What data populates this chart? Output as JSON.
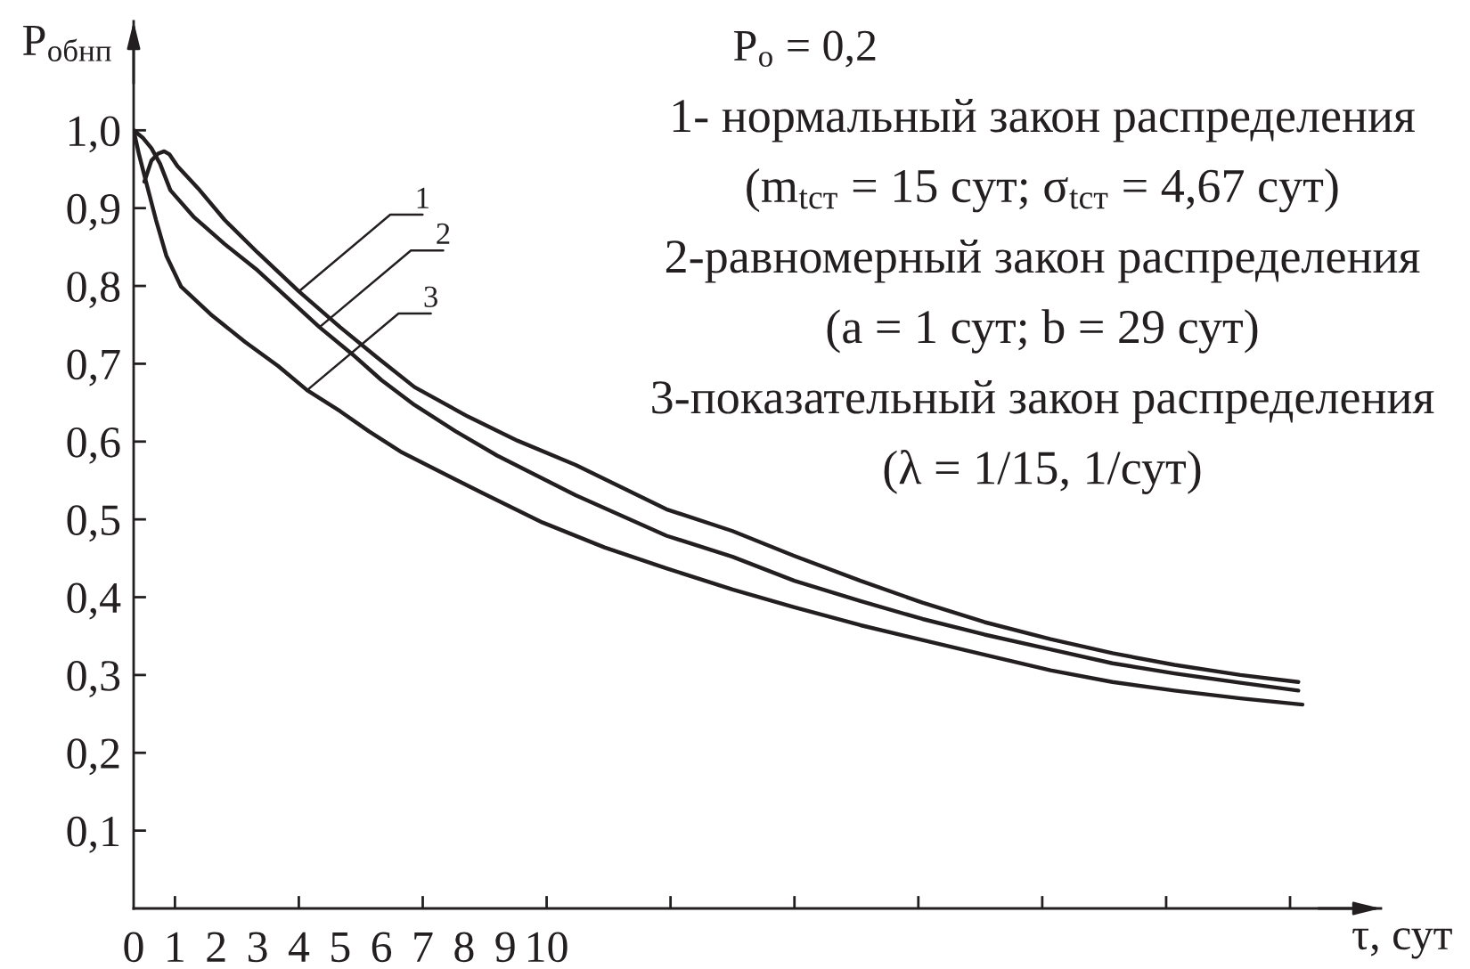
{
  "chart_data": {
    "type": "line",
    "xlabel": "τ, сут",
    "ylabel": "P$_{обнп}$",
    "xlim": [
      0,
      30.2
    ],
    "ylim": [
      0,
      1.14
    ],
    "xticks": [
      0,
      1,
      2,
      3,
      4,
      5,
      6,
      7,
      8,
      9,
      10,
      {
        "value": 1,
        "label": null
      },
      {
        "value": 4,
        "label": null
      },
      {
        "value": 7,
        "label": null
      },
      {
        "value": 10,
        "label": null
      },
      {
        "value": 13,
        "label": null
      },
      {
        "value": 16,
        "label": null
      },
      {
        "value": 19,
        "label": null
      },
      {
        "value": 22,
        "label": null
      },
      {
        "value": 25,
        "label": null
      },
      {
        "value": 28,
        "label": null
      }
    ],
    "yticks": [
      {
        "value": 0.1,
        "label": "0,1"
      },
      {
        "value": 0.2,
        "label": "0,2"
      },
      {
        "value": 0.3,
        "label": "0,3"
      },
      {
        "value": 0.4,
        "label": "0,4"
      },
      {
        "value": 0.5,
        "label": "0,5"
      },
      {
        "value": 0.6,
        "label": "0,6"
      },
      {
        "value": 0.7,
        "label": "0,7"
      },
      {
        "value": 0.8,
        "label": "0,8"
      },
      {
        "value": 0.9,
        "label": "0,9"
      },
      {
        "value": 1.0,
        "label": "1,0"
      }
    ],
    "series": [
      {
        "color": "#231f20",
        "x": [
          0.26,
          0.43,
          0.59,
          0.74,
          0.87,
          1.06,
          1.6,
          2.2,
          3.0,
          4.0,
          5.0,
          5.9,
          6.8,
          8.1,
          9.3,
          10.7,
          12.9,
          14.5,
          16.0,
          17.6,
          19.1,
          20.6,
          22.2,
          23.7,
          25.2,
          26.8,
          28.2
        ],
        "values": [
          0.934,
          0.961,
          0.97,
          0.973,
          0.969,
          0.954,
          0.923,
          0.885,
          0.843,
          0.793,
          0.747,
          0.708,
          0.67,
          0.632,
          0.601,
          0.57,
          0.513,
          0.485,
          0.453,
          0.421,
          0.393,
          0.368,
          0.346,
          0.328,
          0.313,
          0.3,
          0.291
        ]
      },
      {
        "color": "#231f20",
        "x": [
          0,
          0.23,
          0.43,
          0.64,
          0.89,
          1.45,
          2.2,
          3.0,
          3.8,
          4.5,
          5.3,
          6.0,
          6.8,
          7.8,
          8.8,
          10.7,
          12.9,
          14.5,
          16.0,
          17.6,
          19.1,
          20.6,
          22.2,
          23.7,
          25.2,
          26.8,
          28.2
        ],
        "values": [
          1.0,
          0.99,
          0.977,
          0.957,
          0.923,
          0.889,
          0.854,
          0.82,
          0.781,
          0.747,
          0.712,
          0.679,
          0.647,
          0.613,
          0.582,
          0.531,
          0.479,
          0.452,
          0.421,
          0.395,
          0.372,
          0.352,
          0.333,
          0.315,
          0.302,
          0.29,
          0.28
        ]
      },
      {
        "color": "#231f20",
        "x": [
          0,
          0.13,
          0.28,
          0.54,
          0.79,
          1.15,
          1.9,
          2.7,
          3.5,
          4.2,
          5.0,
          5.7,
          6.5,
          8.4,
          9.9,
          11.4,
          12.9,
          14.5,
          16.0,
          17.6,
          19.1,
          20.6,
          22.2,
          23.7,
          25.2,
          26.8,
          28.3
        ],
        "values": [
          1.0,
          0.969,
          0.938,
          0.885,
          0.839,
          0.799,
          0.762,
          0.728,
          0.697,
          0.666,
          0.639,
          0.613,
          0.586,
          0.535,
          0.496,
          0.464,
          0.437,
          0.41,
          0.387,
          0.364,
          0.345,
          0.326,
          0.306,
          0.291,
          0.28,
          0.27,
          0.262
        ]
      }
    ],
    "annotations": [
      "P$_{о}$ = 0,2",
      "1- нормальный закон распределения",
      "(m$_{tст}$ = 15 сут; σ$_{tст}$ = 4,67 сут)",
      "2-равномерный закон распределения",
      "(a = 1 сут; b = 29 сут)",
      "3-показательный закон распределения",
      "(λ = 1/15, 1/сут)",
      {
        "text": "1",
        "x": 4.0,
        "y": 0.793
      },
      {
        "text": "2",
        "x": 4.5,
        "y": 0.747
      },
      {
        "text": "3",
        "x": 4.2,
        "y": 0.666
      }
    ]
  }
}
